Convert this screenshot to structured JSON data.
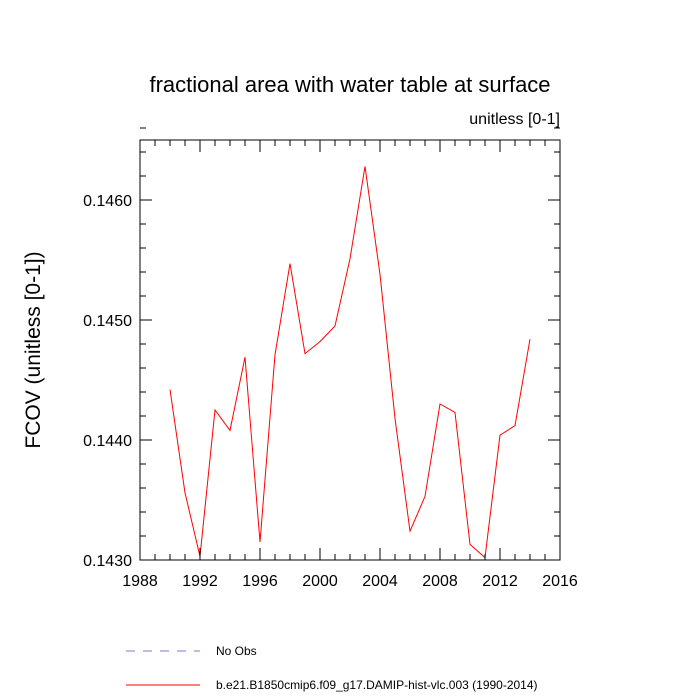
{
  "chart_data": {
    "type": "line",
    "title": "fractional area with water table at surface",
    "units_label": "unitless [0-1]",
    "ylabel": "FCOV  (unitless [0-1])",
    "xlabel": "",
    "xlim": [
      1988,
      2016
    ],
    "ylim": [
      0.143,
      0.1465
    ],
    "xticks": [
      1988,
      1992,
      1996,
      2000,
      2004,
      2008,
      2012,
      2016
    ],
    "xtick_labels": [
      "1988",
      "1992",
      "1996",
      "2000",
      "2004",
      "2008",
      "2012",
      "2016"
    ],
    "yticks": [
      0.143,
      0.144,
      0.145,
      0.146
    ],
    "ytick_labels": [
      "0.1430",
      "0.1440",
      "0.1450",
      "0.1460"
    ],
    "grid": false,
    "legend_position": "bottom",
    "series": [
      {
        "name": "b.e21.B1850cmip6.f09_g17.DAMIP-hist-vlc.003 (1990-2014)",
        "color": "#ff0000",
        "style": "solid",
        "x": [
          1990,
          1991,
          1992,
          1993,
          1994,
          1995,
          1996,
          1997,
          1998,
          1999,
          2000,
          2001,
          2002,
          2003,
          2004,
          2005,
          2006,
          2007,
          2008,
          2009,
          2010,
          2011,
          2012,
          2013,
          2014
        ],
        "y": [
          0.14442,
          0.14356,
          0.14303,
          0.14425,
          0.14408,
          0.14469,
          0.14315,
          0.14471,
          0.14547,
          0.14472,
          0.14482,
          0.14495,
          0.14551,
          0.14628,
          0.14538,
          0.14418,
          0.14324,
          0.14353,
          0.1443,
          0.14423,
          0.14313,
          0.14302,
          0.14404,
          0.14412,
          0.14484
        ]
      }
    ],
    "legend": [
      {
        "label": "No Obs",
        "color": "#7b7bd6",
        "style": "dashed"
      },
      {
        "label": "b.e21.B1850cmip6.f09_g17.DAMIP-hist-vlc.003 (1990-2014)",
        "color": "#ff0000",
        "style": "solid"
      }
    ]
  }
}
